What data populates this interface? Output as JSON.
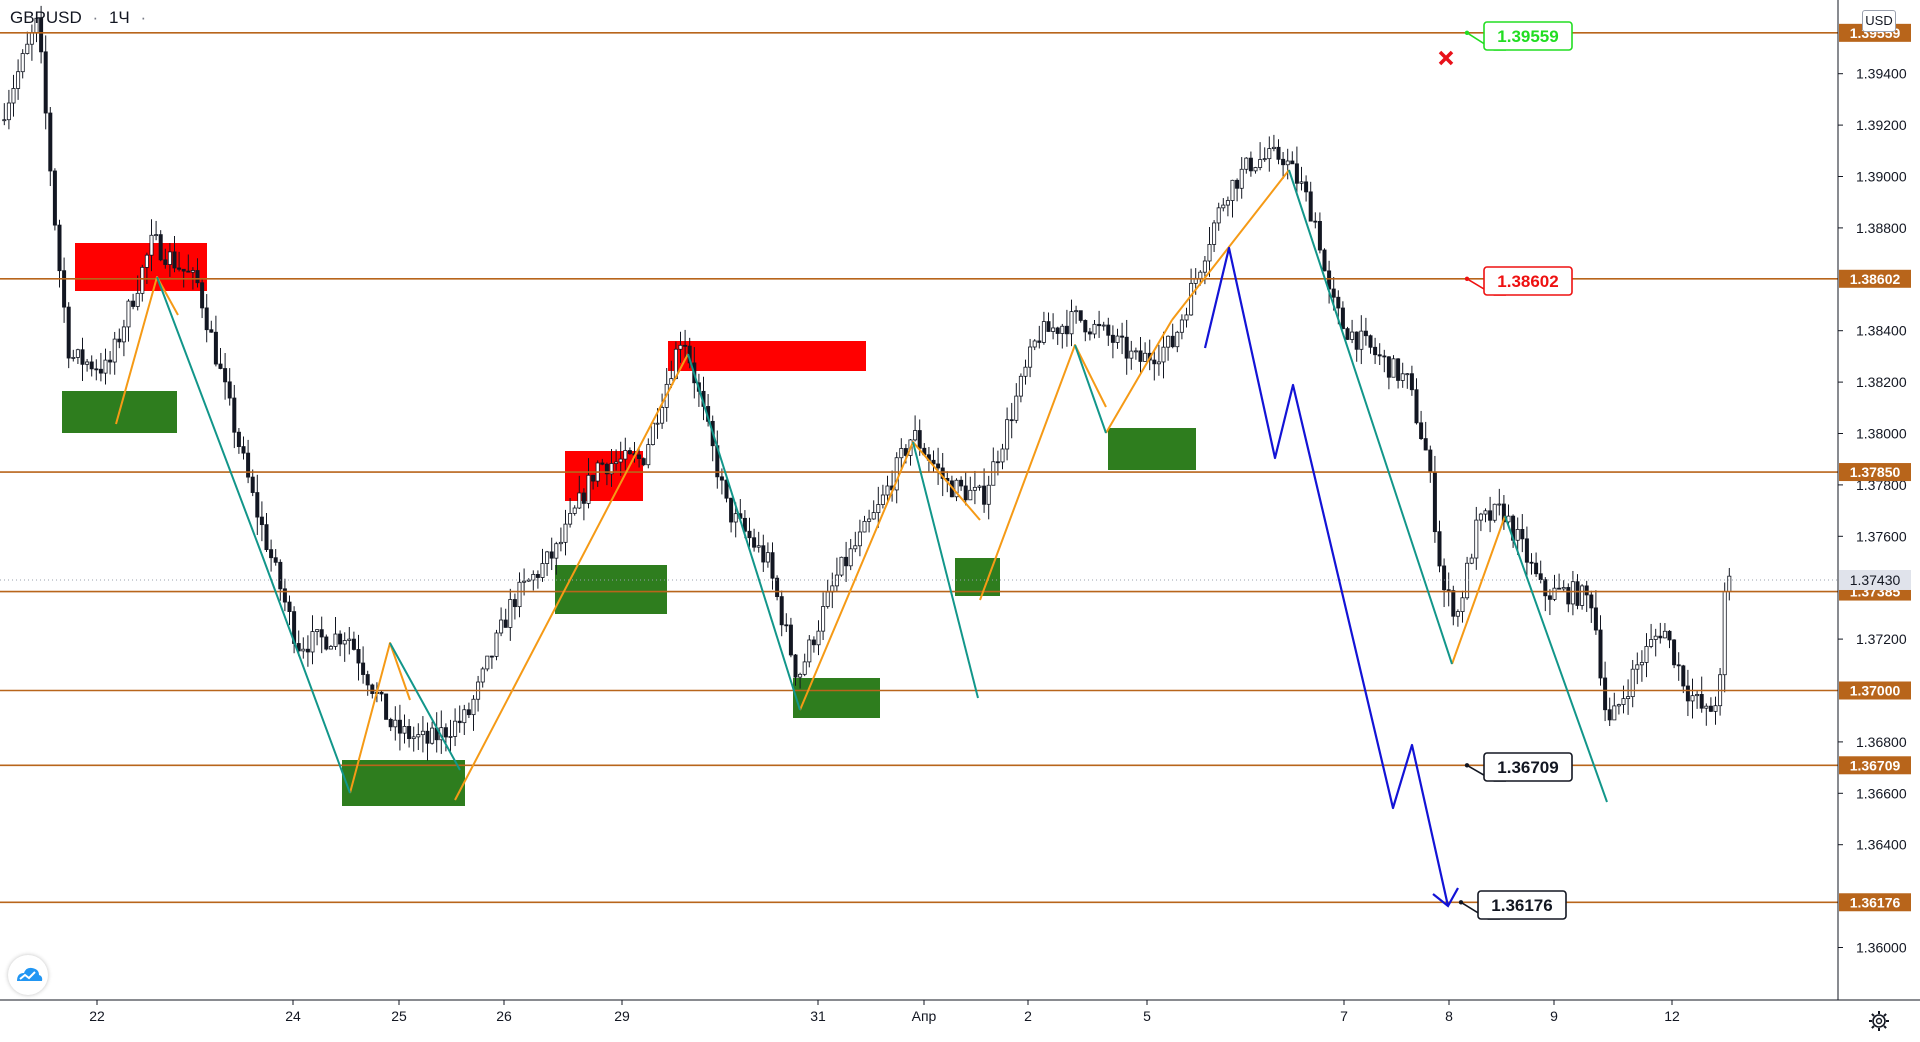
{
  "header": {
    "symbol": "GBPUSD",
    "separator": "·",
    "interval": "1Ч",
    "dots": "·"
  },
  "currency_badge": "USD",
  "colors": {
    "level_line": "#b8651b",
    "resistance_zone": "#ff0000",
    "support_zone": "#2e7d1e",
    "wave_up": "#f59a16",
    "wave_down": "#12968a",
    "forecast": "#1313d6",
    "candle": "#131722",
    "label_green": "#22dd22",
    "label_red": "#ee1111",
    "label_black": "#131722"
  },
  "chart_data": {
    "type": "candlestick",
    "symbol": "GBPUSD",
    "timeframe": "1Ч",
    "ylim": [
      1.3591,
      1.3984
    ],
    "x_ticks": [
      "22",
      "24",
      "25",
      "26",
      "29",
      "31",
      "Апр",
      "2",
      "5",
      "7",
      "8",
      "9",
      "12"
    ],
    "y_ticks": [
      "1.36000",
      "1.36400",
      "1.36600",
      "1.36800",
      "1.37200",
      "1.37600",
      "1.37800",
      "1.38000",
      "1.38200",
      "1.38400",
      "1.38800",
      "1.39000",
      "1.39200",
      "1.39400"
    ],
    "horizontal_levels": [
      {
        "value": 1.39559,
        "label": "1.39559"
      },
      {
        "value": 1.38602,
        "label": "1.38602"
      },
      {
        "value": 1.3785,
        "label": "1.37850"
      },
      {
        "value": 1.37385,
        "label": "1.37385"
      },
      {
        "value": 1.37,
        "label": "1.37000"
      },
      {
        "value": 1.36709,
        "label": "1.36709"
      },
      {
        "value": 1.36176,
        "label": "1.36176"
      }
    ],
    "last_price": {
      "value": 1.3743,
      "label": "1.37430"
    },
    "callouts": [
      {
        "text": "1.39559",
        "value": 1.39559,
        "color": "green"
      },
      {
        "text": "1.38602",
        "value": 1.38602,
        "color": "red"
      },
      {
        "text": "1.36709",
        "value": 1.36709,
        "color": "black"
      },
      {
        "text": "1.36176",
        "value": 1.36176,
        "color": "black"
      }
    ]
  }
}
